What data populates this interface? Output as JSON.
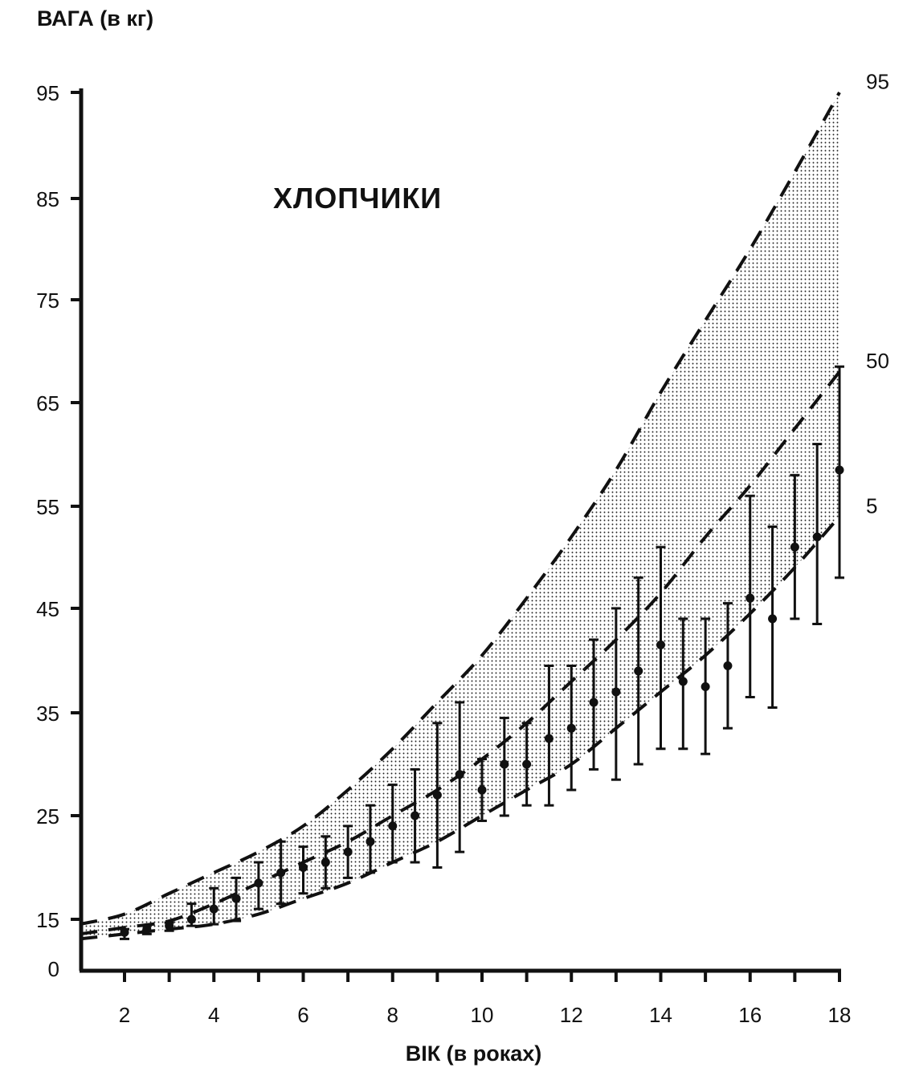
{
  "chart_data": {
    "type": "line",
    "ylabel": "ВАГА (в кг)",
    "xlabel": "ВІК (в роках)",
    "title": "ХЛОПЧИКИ",
    "ylim": [
      0,
      95
    ],
    "xlim": [
      1,
      18
    ],
    "y_ticks": [
      0,
      15,
      25,
      35,
      45,
      55,
      65,
      75,
      85,
      95
    ],
    "x_ticks": [
      2,
      4,
      6,
      8,
      10,
      12,
      14,
      16,
      18
    ],
    "grid": false,
    "series": [
      {
        "name": "95",
        "x": [
          1,
          2,
          3,
          4,
          5,
          6,
          7,
          8,
          9,
          10,
          11,
          12,
          13,
          14,
          15,
          16,
          17,
          18
        ],
        "y": [
          13.5,
          15.5,
          17.5,
          19.5,
          21.5,
          24,
          27.5,
          31.5,
          36,
          40.5,
          46,
          52,
          58.5,
          66,
          73,
          80,
          87.5,
          95
        ]
      },
      {
        "name": "50",
        "x": [
          1,
          2,
          3,
          4,
          5,
          6,
          7,
          8,
          9,
          10,
          11,
          12,
          13,
          14,
          15,
          16,
          17,
          18
        ],
        "y": [
          10.5,
          12.5,
          14.5,
          16.5,
          18.5,
          20.5,
          22.5,
          25,
          27.5,
          30.5,
          34,
          38,
          42,
          46.5,
          52,
          57,
          62.5,
          68
        ]
      },
      {
        "name": "5",
        "x": [
          1,
          2,
          3,
          4,
          5,
          6,
          7,
          8,
          9,
          10,
          11,
          12,
          13,
          14,
          15,
          16,
          17,
          18
        ],
        "y": [
          9,
          10.5,
          12,
          13.5,
          15.5,
          17,
          18.5,
          20.5,
          22.5,
          25,
          27.5,
          30,
          33.5,
          37,
          40.5,
          44.5,
          49,
          54
        ]
      }
    ],
    "percentile_labels": [
      "95",
      "50",
      "5"
    ],
    "measurements": [
      {
        "x": 2,
        "mean": 11,
        "low": 9,
        "high": 12
      },
      {
        "x": 2.5,
        "mean": 12,
        "low": 10.5,
        "high": 13
      },
      {
        "x": 3,
        "mean": 13,
        "low": 11.5,
        "high": 14
      },
      {
        "x": 3.5,
        "mean": 15,
        "low": 13,
        "high": 16.5
      },
      {
        "x": 4,
        "mean": 16,
        "low": 13.5,
        "high": 18
      },
      {
        "x": 4.5,
        "mean": 17,
        "low": 14.5,
        "high": 19
      },
      {
        "x": 5,
        "mean": 18.5,
        "low": 16,
        "high": 20.5
      },
      {
        "x": 5.5,
        "mean": 19.5,
        "low": 16.5,
        "high": 22.5
      },
      {
        "x": 6,
        "mean": 20,
        "low": 17.5,
        "high": 22
      },
      {
        "x": 6.5,
        "mean": 20.5,
        "low": 18,
        "high": 23
      },
      {
        "x": 7,
        "mean": 21.5,
        "low": 19,
        "high": 24
      },
      {
        "x": 7.5,
        "mean": 22.5,
        "low": 19.5,
        "high": 26
      },
      {
        "x": 8,
        "mean": 24,
        "low": 20.5,
        "high": 28
      },
      {
        "x": 8.5,
        "mean": 25,
        "low": 20.5,
        "high": 29.5
      },
      {
        "x": 9,
        "mean": 27,
        "low": 20,
        "high": 34
      },
      {
        "x": 9.5,
        "mean": 29,
        "low": 21.5,
        "high": 36
      },
      {
        "x": 10,
        "mean": 27.5,
        "low": 24.5,
        "high": 30.5
      },
      {
        "x": 10.5,
        "mean": 30,
        "low": 25,
        "high": 34.5
      },
      {
        "x": 11,
        "mean": 30,
        "low": 26,
        "high": 34
      },
      {
        "x": 11.5,
        "mean": 32.5,
        "low": 26,
        "high": 39.5
      },
      {
        "x": 12,
        "mean": 33.5,
        "low": 27.5,
        "high": 39.5
      },
      {
        "x": 12.5,
        "mean": 36,
        "low": 29.5,
        "high": 42
      },
      {
        "x": 13,
        "mean": 37,
        "low": 28.5,
        "high": 45
      },
      {
        "x": 13.5,
        "mean": 39,
        "low": 30,
        "high": 48
      },
      {
        "x": 14,
        "mean": 41.5,
        "low": 31.5,
        "high": 51
      },
      {
        "x": 14.5,
        "mean": 38,
        "low": 31.5,
        "high": 44
      },
      {
        "x": 15,
        "mean": 37.5,
        "low": 31,
        "high": 44
      },
      {
        "x": 15.5,
        "mean": 39.5,
        "low": 33.5,
        "high": 45.5
      },
      {
        "x": 16,
        "mean": 46,
        "low": 36.5,
        "high": 56
      },
      {
        "x": 16.5,
        "mean": 44,
        "low": 35.5,
        "high": 53
      },
      {
        "x": 17,
        "mean": 51,
        "low": 44,
        "high": 58
      },
      {
        "x": 17.5,
        "mean": 52,
        "low": 43.5,
        "high": 61
      },
      {
        "x": 18,
        "mean": 58.5,
        "low": 48,
        "high": 68.5
      }
    ],
    "colors": {
      "ink": "#111111",
      "band_dots": "#222222"
    }
  }
}
